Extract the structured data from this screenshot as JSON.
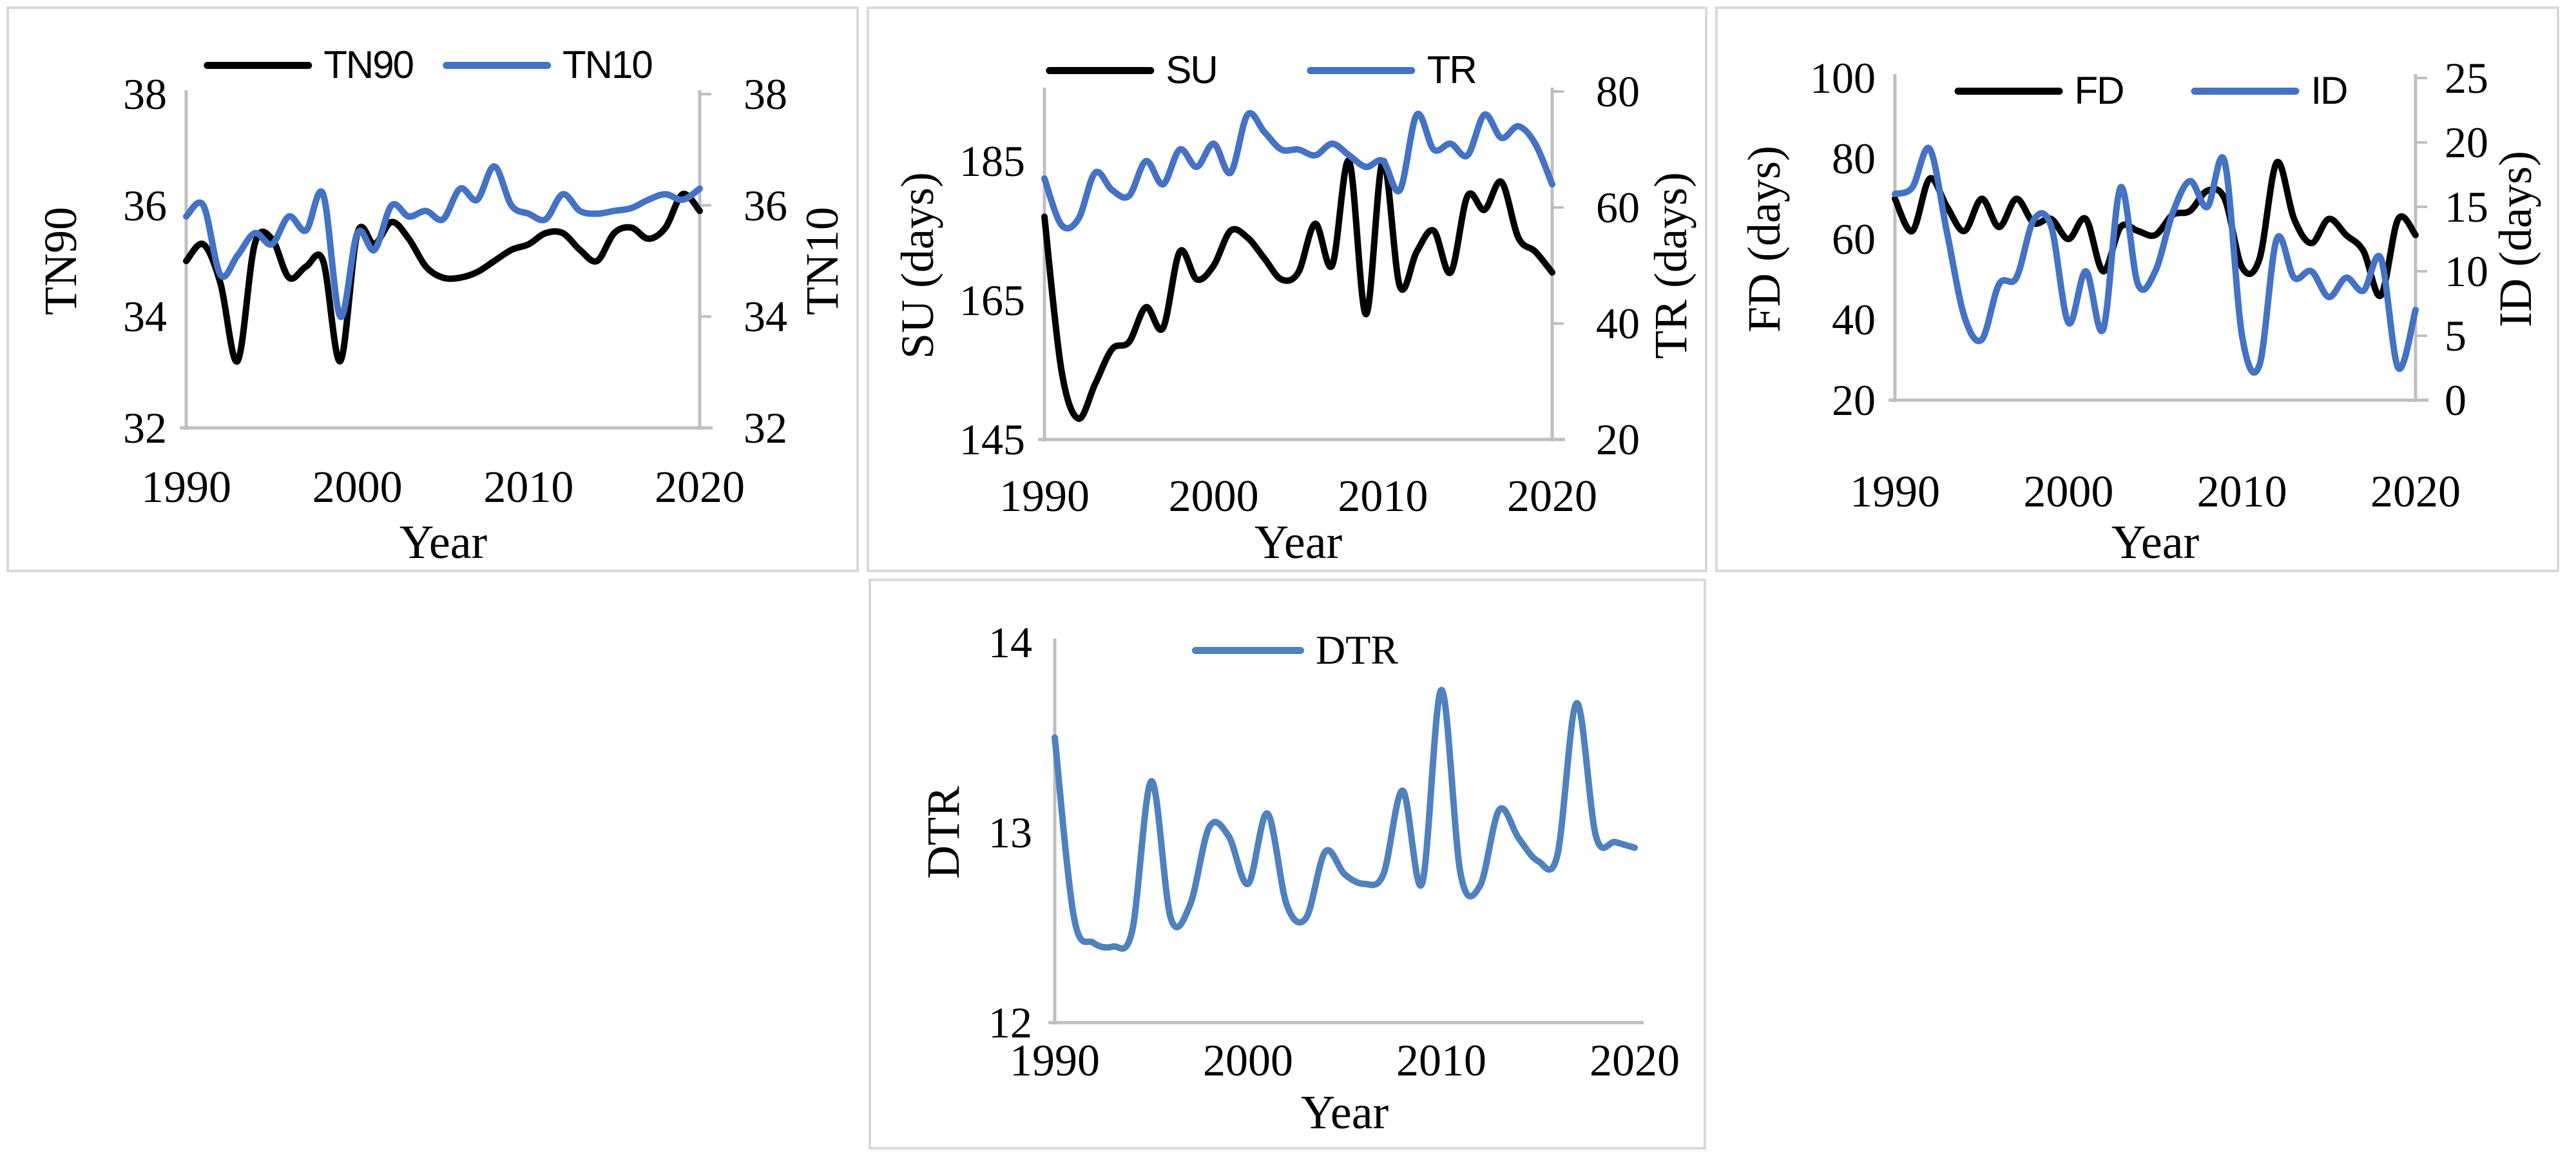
{
  "figure": {
    "xlabel": "Year",
    "x_tick_labels": [
      "1990",
      "2000",
      "2010",
      "2020"
    ],
    "colors": {
      "black_series": "#000000",
      "blue_series": "#4472c4",
      "blue_series_dtr": "#4f81bd",
      "axis_line": "#bfbfbf",
      "panel_border": "#d9d9d9",
      "background": "#ffffff",
      "text": "#000000"
    }
  },
  "chart_data": [
    {
      "type": "line",
      "smooth": true,
      "xlabel": "Year",
      "x": [
        1990,
        1991,
        1992,
        1993,
        1994,
        1995,
        1996,
        1997,
        1998,
        1999,
        2000,
        2001,
        2002,
        2003,
        2004,
        2005,
        2006,
        2007,
        2008,
        2009,
        2010,
        2011,
        2012,
        2013,
        2014,
        2015,
        2016,
        2017,
        2018,
        2019,
        2020
      ],
      "x_ticks": [
        1990,
        2000,
        2010,
        2020
      ],
      "left_axis": {
        "label": "TN90",
        "ticks": [
          38,
          36,
          34,
          32
        ],
        "range": [
          32,
          38
        ]
      },
      "right_axis": {
        "label": "TN10",
        "ticks": [
          38,
          36,
          34,
          32
        ],
        "range": [
          32,
          38
        ]
      },
      "legend_position": "top-center",
      "series": [
        {
          "name": "TN90",
          "axis": "left",
          "color": "#000000",
          "values": [
            35.0,
            35.3,
            34.6,
            33.2,
            35.3,
            35.4,
            34.7,
            34.9,
            35.0,
            33.2,
            35.5,
            35.3,
            35.7,
            35.4,
            34.9,
            34.7,
            34.7,
            34.8,
            35.0,
            35.2,
            35.3,
            35.5,
            35.5,
            35.2,
            35.0,
            35.5,
            35.6,
            35.4,
            35.6,
            36.2,
            35.9
          ]
        },
        {
          "name": "TN10",
          "axis": "right",
          "color": "#4472c4",
          "values": [
            35.8,
            36.0,
            34.75,
            35.1,
            35.5,
            35.3,
            35.8,
            35.55,
            36.2,
            34.0,
            35.5,
            35.2,
            36.0,
            35.8,
            35.9,
            35.75,
            36.3,
            36.1,
            36.7,
            36.0,
            35.85,
            35.75,
            36.2,
            35.9,
            35.85,
            35.9,
            35.95,
            36.1,
            36.2,
            36.1,
            36.3
          ]
        }
      ]
    },
    {
      "type": "line",
      "smooth": true,
      "xlabel": "Year",
      "x": [
        1990,
        1991,
        1992,
        1993,
        1994,
        1995,
        1996,
        1997,
        1998,
        1999,
        2000,
        2001,
        2002,
        2003,
        2004,
        2005,
        2006,
        2007,
        2008,
        2009,
        2010,
        2011,
        2012,
        2013,
        2014,
        2015,
        2016,
        2017,
        2018,
        2019,
        2020
      ],
      "x_ticks": [
        1990,
        2000,
        2010,
        2020
      ],
      "left_axis": {
        "label": "SU (days)",
        "ticks": [
          185,
          165,
          145
        ],
        "range": [
          145,
          195
        ]
      },
      "right_axis": {
        "label": "TR (days)",
        "ticks": [
          80,
          60,
          40,
          20
        ],
        "range": [
          20,
          80
        ]
      },
      "legend_position": "top-center",
      "series": [
        {
          "name": "SU",
          "axis": "left",
          "color": "#000000",
          "values": [
            177,
            155,
            148,
            153,
            158,
            159,
            164,
            161,
            172,
            168,
            170,
            175,
            174,
            171,
            168,
            169,
            176,
            170,
            185,
            163,
            185,
            167,
            172,
            175,
            169,
            180,
            178,
            182,
            174,
            172,
            169
          ]
        },
        {
          "name": "TR",
          "axis": "right",
          "color": "#4472c4",
          "values": [
            65,
            57,
            58,
            66,
            63,
            62,
            68,
            64,
            70,
            67,
            71,
            66,
            76,
            73,
            70,
            70,
            69,
            71,
            69,
            67,
            68,
            63,
            76,
            70,
            71,
            69,
            76,
            72,
            74,
            71,
            64
          ]
        }
      ]
    },
    {
      "type": "line",
      "smooth": true,
      "xlabel": "Year",
      "x": [
        1990,
        1991,
        1992,
        1993,
        1994,
        1995,
        1996,
        1997,
        1998,
        1999,
        2000,
        2001,
        2002,
        2003,
        2004,
        2005,
        2006,
        2007,
        2008,
        2009,
        2010,
        2011,
        2012,
        2013,
        2014,
        2015,
        2016,
        2017,
        2018,
        2019,
        2020
      ],
      "x_ticks": [
        1990,
        2000,
        2010,
        2020
      ],
      "left_axis": {
        "label": "FD (days)",
        "ticks": [
          100,
          80,
          60,
          40,
          20
        ],
        "range": [
          20,
          100
        ]
      },
      "right_axis": {
        "label": "ID (days)",
        "ticks": [
          25,
          20,
          15,
          10,
          5,
          0
        ],
        "range": [
          0,
          25
        ]
      },
      "legend_position": "top-center",
      "series": [
        {
          "name": "FD",
          "axis": "left",
          "color": "#000000",
          "values": [
            70,
            62,
            75,
            68,
            62,
            70,
            63,
            70,
            64,
            65,
            60,
            65,
            52,
            63,
            62,
            61,
            66,
            67,
            72,
            70,
            53,
            55,
            79,
            65,
            59,
            65,
            61,
            57,
            46,
            65,
            61
          ]
        },
        {
          "name": "ID",
          "axis": "right",
          "color": "#4472c4",
          "values": [
            16,
            16.5,
            19.5,
            13,
            6.5,
            4.7,
            9,
            9.5,
            14,
            13.5,
            6,
            10,
            5.5,
            16.5,
            9,
            10,
            14.5,
            17,
            15,
            18.5,
            5,
            2.7,
            12.5,
            9.5,
            10,
            8,
            9.5,
            8.5,
            11,
            2.5,
            7
          ]
        }
      ]
    },
    {
      "type": "line",
      "smooth": true,
      "xlabel": "Year",
      "x": [
        1990,
        1991,
        1992,
        1993,
        1994,
        1995,
        1996,
        1997,
        1998,
        1999,
        2000,
        2001,
        2002,
        2003,
        2004,
        2005,
        2006,
        2007,
        2008,
        2009,
        2010,
        2011,
        2012,
        2013,
        2014,
        2015,
        2016,
        2017,
        2018,
        2019,
        2020
      ],
      "x_ticks": [
        1990,
        2000,
        2010,
        2020
      ],
      "left_axis": {
        "label": "DTR",
        "ticks": [
          14,
          13,
          12
        ],
        "range": [
          12,
          14
        ]
      },
      "right_axis": null,
      "legend_position": "top-center",
      "series": [
        {
          "name": "DTR",
          "axis": "left",
          "color": "#4f81bd",
          "values": [
            13.5,
            12.55,
            12.42,
            12.4,
            12.48,
            13.27,
            12.55,
            12.62,
            13.03,
            12.98,
            12.73,
            13.1,
            12.62,
            12.55,
            12.9,
            12.78,
            12.73,
            12.78,
            13.22,
            12.73,
            13.75,
            12.78,
            12.72,
            13.12,
            12.97,
            12.85,
            12.88,
            13.68,
            12.98,
            12.95,
            12.92
          ]
        }
      ]
    }
  ]
}
